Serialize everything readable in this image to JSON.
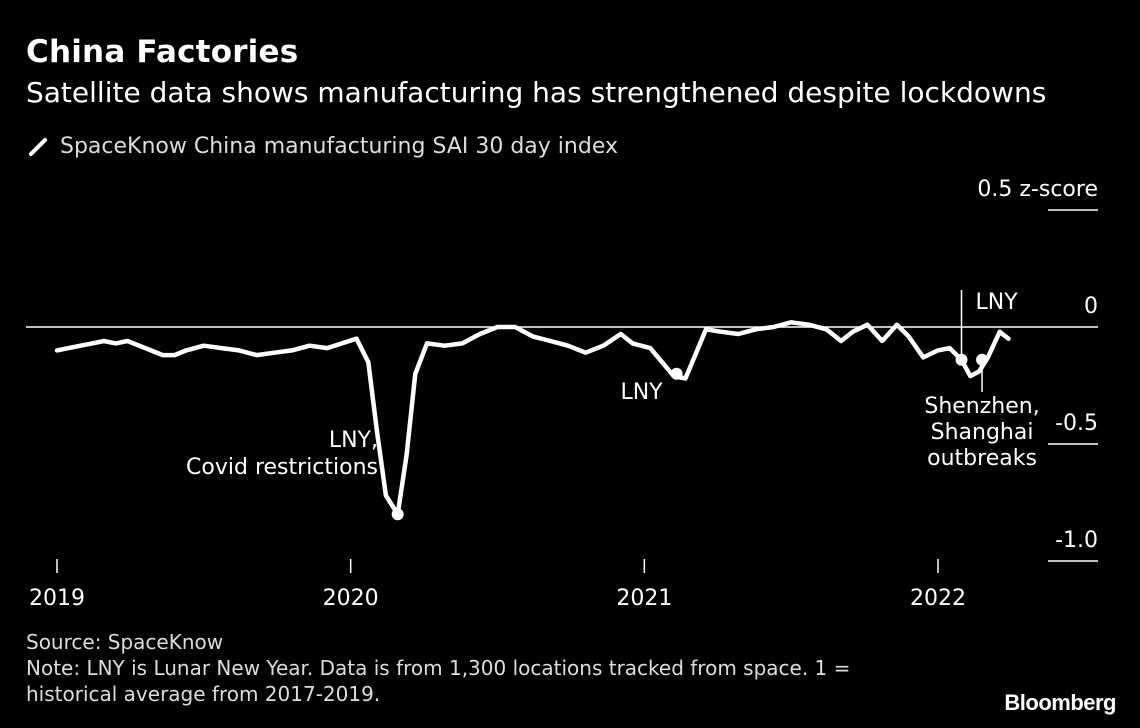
{
  "header": {
    "title": "China Factories",
    "subtitle": "Satellite data shows manufacturing has strengthened despite lockdowns"
  },
  "legend": {
    "label": "SpaceKnow China manufacturing SAI 30 day index"
  },
  "footer": {
    "source": "Source: SpaceKnow",
    "note": "Note: LNY is Lunar New Year. Data is from 1,300 locations tracked from space. 1 = historical average from 2017-2019."
  },
  "brand": "Bloomberg",
  "colors": {
    "background": "#000000",
    "line": "#ffffff",
    "text": "#ffffff"
  },
  "chart_data": {
    "type": "line",
    "title": "China Factories",
    "ylabel": "z-score",
    "ylim": [
      -1.0,
      0.5
    ],
    "xlim": [
      2019.0,
      2022.4
    ],
    "x_ticks": [
      {
        "value": 2019,
        "label": "2019"
      },
      {
        "value": 2020,
        "label": "2020"
      },
      {
        "value": 2021,
        "label": "2021"
      },
      {
        "value": 2022,
        "label": "2022"
      }
    ],
    "y_ticks": [
      {
        "value": 0.5,
        "label": "0.5 z-score"
      },
      {
        "value": 0,
        "label": "0"
      },
      {
        "value": -0.5,
        "label": "-0.5"
      },
      {
        "value": -1.0,
        "label": "-1.0"
      }
    ],
    "series": [
      {
        "values": [
          {
            "x": 2019.0,
            "y": -0.1
          },
          {
            "x": 2019.04,
            "y": -0.09
          },
          {
            "x": 2019.08,
            "y": -0.08
          },
          {
            "x": 2019.12,
            "y": -0.07
          },
          {
            "x": 2019.16,
            "y": -0.06
          },
          {
            "x": 2019.2,
            "y": -0.07
          },
          {
            "x": 2019.24,
            "y": -0.06
          },
          {
            "x": 2019.28,
            "y": -0.08
          },
          {
            "x": 2019.32,
            "y": -0.1
          },
          {
            "x": 2019.36,
            "y": -0.12
          },
          {
            "x": 2019.4,
            "y": -0.12
          },
          {
            "x": 2019.44,
            "y": -0.1
          },
          {
            "x": 2019.5,
            "y": -0.08
          },
          {
            "x": 2019.56,
            "y": -0.09
          },
          {
            "x": 2019.62,
            "y": -0.1
          },
          {
            "x": 2019.68,
            "y": -0.12
          },
          {
            "x": 2019.74,
            "y": -0.11
          },
          {
            "x": 2019.8,
            "y": -0.1
          },
          {
            "x": 2019.86,
            "y": -0.08
          },
          {
            "x": 2019.92,
            "y": -0.09
          },
          {
            "x": 2019.97,
            "y": -0.07
          },
          {
            "x": 2020.02,
            "y": -0.05
          },
          {
            "x": 2020.06,
            "y": -0.15
          },
          {
            "x": 2020.09,
            "y": -0.45
          },
          {
            "x": 2020.12,
            "y": -0.72
          },
          {
            "x": 2020.16,
            "y": -0.8
          },
          {
            "x": 2020.19,
            "y": -0.55
          },
          {
            "x": 2020.22,
            "y": -0.2
          },
          {
            "x": 2020.26,
            "y": -0.07
          },
          {
            "x": 2020.32,
            "y": -0.08
          },
          {
            "x": 2020.38,
            "y": -0.07
          },
          {
            "x": 2020.44,
            "y": -0.03
          },
          {
            "x": 2020.5,
            "y": 0.0
          },
          {
            "x": 2020.56,
            "y": 0.0
          },
          {
            "x": 2020.62,
            "y": -0.04
          },
          {
            "x": 2020.68,
            "y": -0.06
          },
          {
            "x": 2020.74,
            "y": -0.08
          },
          {
            "x": 2020.8,
            "y": -0.11
          },
          {
            "x": 2020.86,
            "y": -0.08
          },
          {
            "x": 2020.92,
            "y": -0.03
          },
          {
            "x": 2020.96,
            "y": -0.07
          },
          {
            "x": 2021.02,
            "y": -0.09
          },
          {
            "x": 2021.06,
            "y": -0.15
          },
          {
            "x": 2021.1,
            "y": -0.21
          },
          {
            "x": 2021.14,
            "y": -0.22
          },
          {
            "x": 2021.18,
            "y": -0.1
          },
          {
            "x": 2021.21,
            "y": -0.01
          },
          {
            "x": 2021.26,
            "y": -0.02
          },
          {
            "x": 2021.32,
            "y": -0.03
          },
          {
            "x": 2021.38,
            "y": -0.01
          },
          {
            "x": 2021.44,
            "y": 0.0
          },
          {
            "x": 2021.5,
            "y": 0.02
          },
          {
            "x": 2021.56,
            "y": 0.01
          },
          {
            "x": 2021.62,
            "y": -0.01
          },
          {
            "x": 2021.67,
            "y": -0.06
          },
          {
            "x": 2021.71,
            "y": -0.02
          },
          {
            "x": 2021.76,
            "y": 0.01
          },
          {
            "x": 2021.81,
            "y": -0.06
          },
          {
            "x": 2021.86,
            "y": 0.01
          },
          {
            "x": 2021.9,
            "y": -0.04
          },
          {
            "x": 2021.95,
            "y": -0.13
          },
          {
            "x": 2022.0,
            "y": -0.1
          },
          {
            "x": 2022.04,
            "y": -0.09
          },
          {
            "x": 2022.08,
            "y": -0.14
          },
          {
            "x": 2022.11,
            "y": -0.21
          },
          {
            "x": 2022.14,
            "y": -0.19
          },
          {
            "x": 2022.17,
            "y": -0.13
          },
          {
            "x": 2022.21,
            "y": -0.02
          },
          {
            "x": 2022.24,
            "y": -0.05
          }
        ]
      }
    ],
    "annotations": [
      {
        "label": "LNY, Covid restrictions",
        "x": 2020.16,
        "y": -0.8
      },
      {
        "label": "LNY",
        "x": 2021.11,
        "y": -0.2
      },
      {
        "label": "LNY",
        "x": 2022.08,
        "y": -0.14
      },
      {
        "label": "Shenzhen, Shanghai outbreaks",
        "x": 2022.15,
        "y": -0.14
      }
    ]
  }
}
